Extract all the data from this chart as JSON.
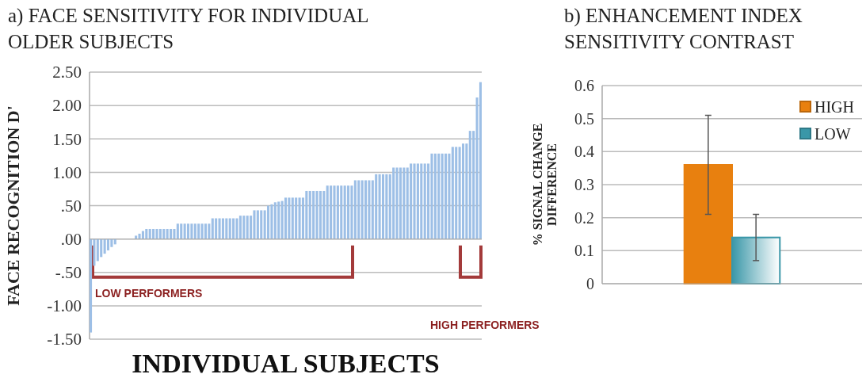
{
  "chart_data": [
    {
      "type": "bar",
      "title": "a) FACE SENSITIVITY FOR INDIVIDUAL OLDER SUBJECTS",
      "xlabel": "INDIVIDUAL SUBJECTS",
      "ylabel": "FACE RECOGNITION D'",
      "categories": [
        null,
        null,
        null,
        null,
        null,
        null,
        null,
        null,
        null,
        null,
        null,
        null,
        null,
        null,
        null,
        null,
        null,
        null,
        null,
        null,
        null,
        null,
        null,
        null,
        null,
        null,
        null,
        null,
        null,
        null,
        null,
        null,
        null,
        null,
        null,
        null,
        null,
        null,
        null,
        null,
        null,
        null,
        null,
        null,
        null,
        null,
        null,
        null,
        null,
        null,
        null,
        null,
        null,
        null,
        null,
        null,
        null,
        null,
        null,
        null,
        null,
        null,
        null,
        null,
        null,
        null,
        null,
        null,
        null,
        null,
        null,
        null,
        null,
        null,
        null,
        null,
        null,
        null,
        null,
        null,
        null,
        null,
        null,
        null,
        null,
        null,
        null,
        null,
        null,
        null,
        null,
        null,
        null,
        null,
        null,
        null,
        null,
        null,
        null,
        null,
        null,
        null,
        null,
        null,
        null,
        null,
        null,
        null,
        null,
        null,
        null,
        null,
        null
      ],
      "values": [
        -1.4,
        -0.4,
        -0.33,
        -0.27,
        -0.22,
        -0.17,
        -0.12,
        -0.08,
        0,
        0,
        0,
        0,
        0,
        0.05,
        0.08,
        0.12,
        0.15,
        0.15,
        0.15,
        0.15,
        0.15,
        0.15,
        0.15,
        0.15,
        0.15,
        0.23,
        0.23,
        0.23,
        0.23,
        0.23,
        0.23,
        0.23,
        0.23,
        0.23,
        0.23,
        0.31,
        0.31,
        0.31,
        0.31,
        0.31,
        0.31,
        0.31,
        0.31,
        0.35,
        0.35,
        0.35,
        0.35,
        0.43,
        0.43,
        0.43,
        0.43,
        0.5,
        0.52,
        0.55,
        0.56,
        0.57,
        0.62,
        0.62,
        0.62,
        0.62,
        0.62,
        0.62,
        0.72,
        0.72,
        0.72,
        0.72,
        0.72,
        0.72,
        0.8,
        0.8,
        0.8,
        0.8,
        0.8,
        0.8,
        0.8,
        0.8,
        0.88,
        0.88,
        0.88,
        0.88,
        0.88,
        0.88,
        0.97,
        0.97,
        0.97,
        0.97,
        0.97,
        1.07,
        1.07,
        1.07,
        1.07,
        1.07,
        1.13,
        1.13,
        1.13,
        1.13,
        1.13,
        1.13,
        1.28,
        1.28,
        1.28,
        1.28,
        1.28,
        1.28,
        1.38,
        1.38,
        1.38,
        1.43,
        1.43,
        1.62,
        1.62,
        2.12,
        2.35
      ],
      "color": "#9dbfe6",
      "ylim": [
        -1.5,
        2.5
      ],
      "yticks": [
        {
          "value": 2.5,
          "label": "2.50"
        },
        {
          "value": 2,
          "label": "2.00"
        },
        {
          "value": 1.5,
          "label": "1.50"
        },
        {
          "value": 1,
          "label": "1.00"
        },
        {
          "value": 0.5,
          "label": ".50"
        },
        {
          "value": 0,
          "label": ".00"
        },
        {
          "value": -0.5,
          "label": "-.50"
        },
        {
          "value": -1,
          "label": "-1.00"
        },
        {
          "value": -1.5,
          "label": "-1.50"
        }
      ],
      "grid": "y",
      "annotations": [
        "LOW PERFORMERS",
        "HIGH PERFORMERS"
      ]
    },
    {
      "type": "bar",
      "title": "b) ENHANCEMENT INDEX SENSITIVITY CONTRAST",
      "ylabel": "% SIGNAL CHANGE DIFFERENCE",
      "categories": [
        null
      ],
      "series": [
        {
          "name": "HIGH",
          "color": "#e8800f",
          "values": [
            0.36
          ],
          "errors": [
            [
              0.21,
              0.51
            ]
          ]
        },
        {
          "name": "LOW",
          "color": "#3a97a8",
          "values": [
            0.14
          ],
          "errors": [
            [
              0.07,
              0.21
            ]
          ]
        }
      ],
      "ylim": [
        0,
        0.6
      ],
      "yticks": [
        0,
        0.1,
        0.2,
        0.3,
        0.4,
        0.5,
        0.6
      ],
      "grid": "y",
      "legend": "top right"
    }
  ]
}
